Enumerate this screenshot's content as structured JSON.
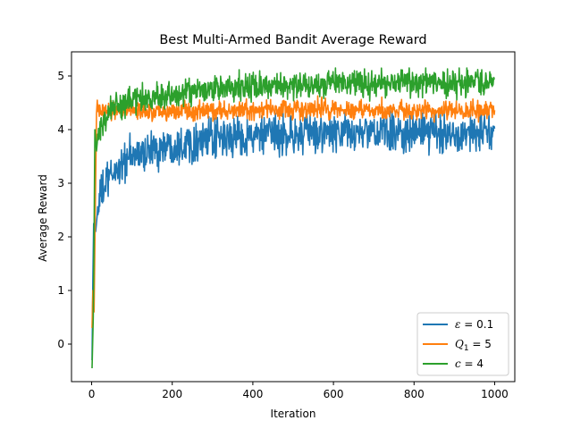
{
  "chart_data": {
    "type": "line",
    "title": "Best Multi-Armed Bandit Average Reward",
    "xlabel": "Iteration",
    "ylabel": "Average Reward",
    "xlim": [
      -50,
      1050
    ],
    "ylim": [
      -0.7,
      5.45
    ],
    "x_ticks": [
      0,
      200,
      400,
      600,
      800,
      1000
    ],
    "y_ticks": [
      0,
      1,
      2,
      3,
      4,
      5
    ],
    "grid": false,
    "legend_position": "lower-right",
    "n_points": 1000,
    "series": [
      {
        "name": "ε = 0.1",
        "legend": {
          "symbol": "ε",
          "sub": "",
          "eq": " = ",
          "value": "0.1"
        },
        "color": "#1f77b4",
        "anchors": [
          [
            1,
            -0.3
          ],
          [
            3,
            1.2
          ],
          [
            5,
            2.25
          ],
          [
            10,
            2.1
          ],
          [
            15,
            2.5
          ],
          [
            20,
            2.75
          ],
          [
            40,
            3.05
          ],
          [
            60,
            3.25
          ],
          [
            100,
            3.5
          ],
          [
            150,
            3.62
          ],
          [
            200,
            3.72
          ],
          [
            300,
            3.82
          ],
          [
            400,
            3.88
          ],
          [
            500,
            3.9
          ],
          [
            600,
            3.93
          ],
          [
            800,
            3.95
          ],
          [
            1000,
            3.93
          ]
        ],
        "noise_amplitude": 0.18,
        "range": [
          2.3,
          4.35
        ]
      },
      {
        "name": "Q1 = 5",
        "legend": {
          "symbol": "Q",
          "sub": "1",
          "eq": " = ",
          "value": "5"
        },
        "color": "#ff7f0e",
        "anchors": [
          [
            1,
            0.3
          ],
          [
            3,
            1.0
          ],
          [
            6,
            0.6
          ],
          [
            9,
            2.5
          ],
          [
            12,
            4.3
          ],
          [
            14,
            4.55
          ],
          [
            20,
            4.3
          ],
          [
            50,
            4.35
          ],
          [
            100,
            4.35
          ],
          [
            300,
            4.35
          ],
          [
            600,
            4.37
          ],
          [
            1000,
            4.35
          ]
        ],
        "noise_amplitude": 0.09,
        "range": [
          4.05,
          4.65
        ]
      },
      {
        "name": "c = 4",
        "legend": {
          "symbol": "c",
          "sub": "",
          "eq": " = ",
          "value": "4"
        },
        "color": "#2ca02c",
        "anchors": [
          [
            1,
            -0.45
          ],
          [
            4,
            0.5
          ],
          [
            6,
            2.0
          ],
          [
            8,
            4.0
          ],
          [
            12,
            3.6
          ],
          [
            15,
            3.85
          ],
          [
            20,
            4.0
          ],
          [
            40,
            4.3
          ],
          [
            60,
            4.45
          ],
          [
            100,
            4.55
          ],
          [
            200,
            4.65
          ],
          [
            300,
            4.75
          ],
          [
            400,
            4.8
          ],
          [
            600,
            4.85
          ],
          [
            800,
            4.88
          ],
          [
            1000,
            4.9
          ]
        ],
        "noise_amplitude": 0.12,
        "range": [
          3.8,
          5.15
        ]
      }
    ]
  }
}
